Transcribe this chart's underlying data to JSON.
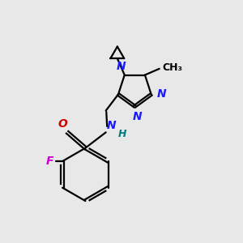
{
  "background_color": "#e8e8e8",
  "bond_color": "#000000",
  "n_color": "#1a1aff",
  "o_color": "#cc0000",
  "f_color": "#cc00cc",
  "h_color": "#008080",
  "figsize": [
    3.0,
    3.0
  ],
  "dpi": 100,
  "xlim": [
    0,
    10
  ],
  "ylim": [
    0,
    10
  ]
}
